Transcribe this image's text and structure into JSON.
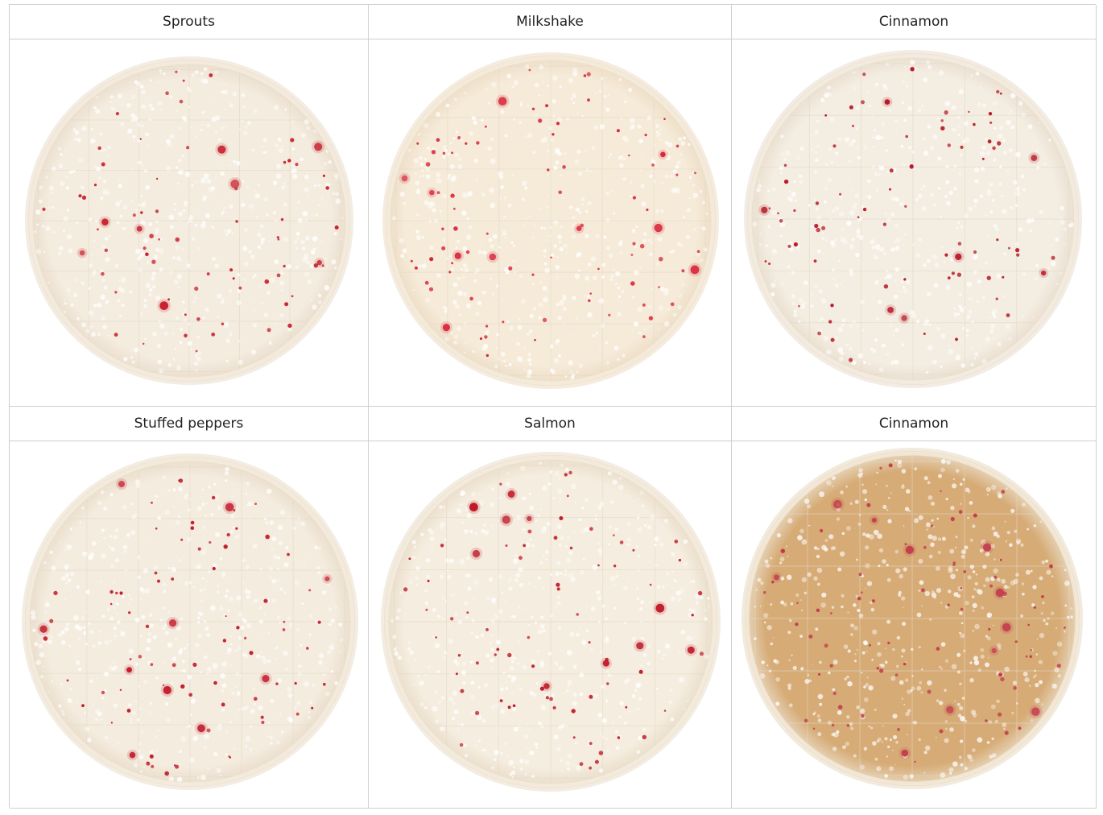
{
  "plates": [
    {
      "label": "Sprouts",
      "fill": "#f4ecdf",
      "edge": "#e9dccb",
      "dot": "#c8202e"
    },
    {
      "label": "Milkshake",
      "fill": "#f6ebd9",
      "edge": "#ecdcc4",
      "dot": "#d8253a"
    },
    {
      "label": "Cinnamon",
      "fill": "#f4ede2",
      "edge": "#e8ddcd",
      "dot": "#b81a26"
    },
    {
      "label": "Stuffed peppers",
      "fill": "#f4ecdf",
      "edge": "#e9dcc9",
      "dot": "#c41c2c"
    },
    {
      "label": "Salmon",
      "fill": "#f5eddf",
      "edge": "#e9dcc8",
      "dot": "#c01a2a"
    },
    {
      "label": "Cinnamon",
      "fill": "#d6ab76",
      "edge": "#e8d8bf",
      "dot": "#c2364a"
    }
  ],
  "colors": {
    "grid_line": "#cfcfcf",
    "text": "#222222",
    "bubble": "#ffffff"
  }
}
